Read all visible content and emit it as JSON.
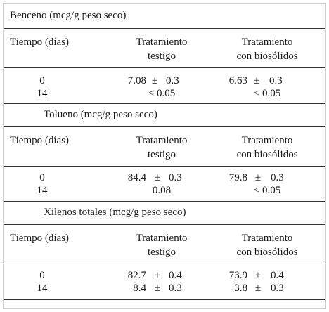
{
  "headers": {
    "time": "Tiempo (días)",
    "control_line1": "Tratamiento",
    "control_line2": "testigo",
    "biosolids_line1": "Tratamiento",
    "biosolids_line2": "con biosólidos"
  },
  "pm": "±",
  "sections": [
    {
      "title": "Benceno (mcg/g peso seco)",
      "rows": [
        {
          "day": "0",
          "control_value": "7.08",
          "control_err": "0.3",
          "bio_value": "6.63",
          "bio_err": "0.3"
        },
        {
          "day": "14",
          "control_text": "< 0.05",
          "bio_text": "< 0.05"
        }
      ]
    },
    {
      "title": "Tolueno (mcg/g peso seco)",
      "rows": [
        {
          "day": "0",
          "control_value": "84.4",
          "control_err": "0.3",
          "bio_value": "79.8",
          "bio_err": "0.3"
        },
        {
          "day": "14",
          "control_text": "0.08",
          "bio_text": "< 0.05"
        }
      ]
    },
    {
      "title": "Xilenos totales (mcg/g peso seco)",
      "rows": [
        {
          "day": "0",
          "control_value": "82.7",
          "control_err": "0.4",
          "bio_value": "73.9",
          "bio_err": "0.4"
        },
        {
          "day": "14",
          "control_value": "8.4",
          "control_err": "0.3",
          "bio_value": "3.8",
          "bio_err": "0.3"
        }
      ]
    }
  ]
}
